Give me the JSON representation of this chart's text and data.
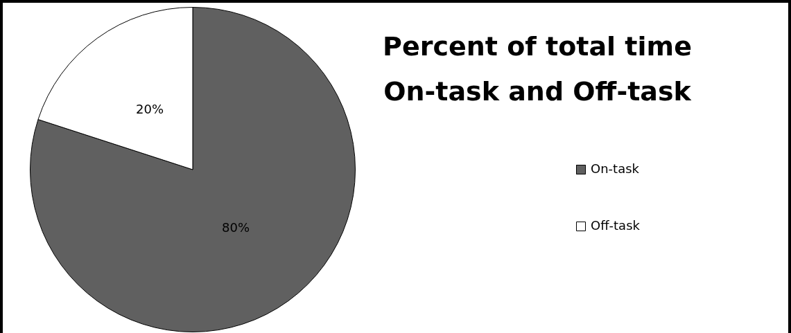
{
  "chart_data": {
    "type": "pie",
    "title": "Percent of total time On-task and Off-task",
    "categories": [
      "On-task",
      "Off-task"
    ],
    "values": [
      80,
      20
    ],
    "colors": [
      "#606060",
      "#ffffff"
    ],
    "value_labels": [
      "80%",
      "20%"
    ],
    "legend": "right"
  }
}
